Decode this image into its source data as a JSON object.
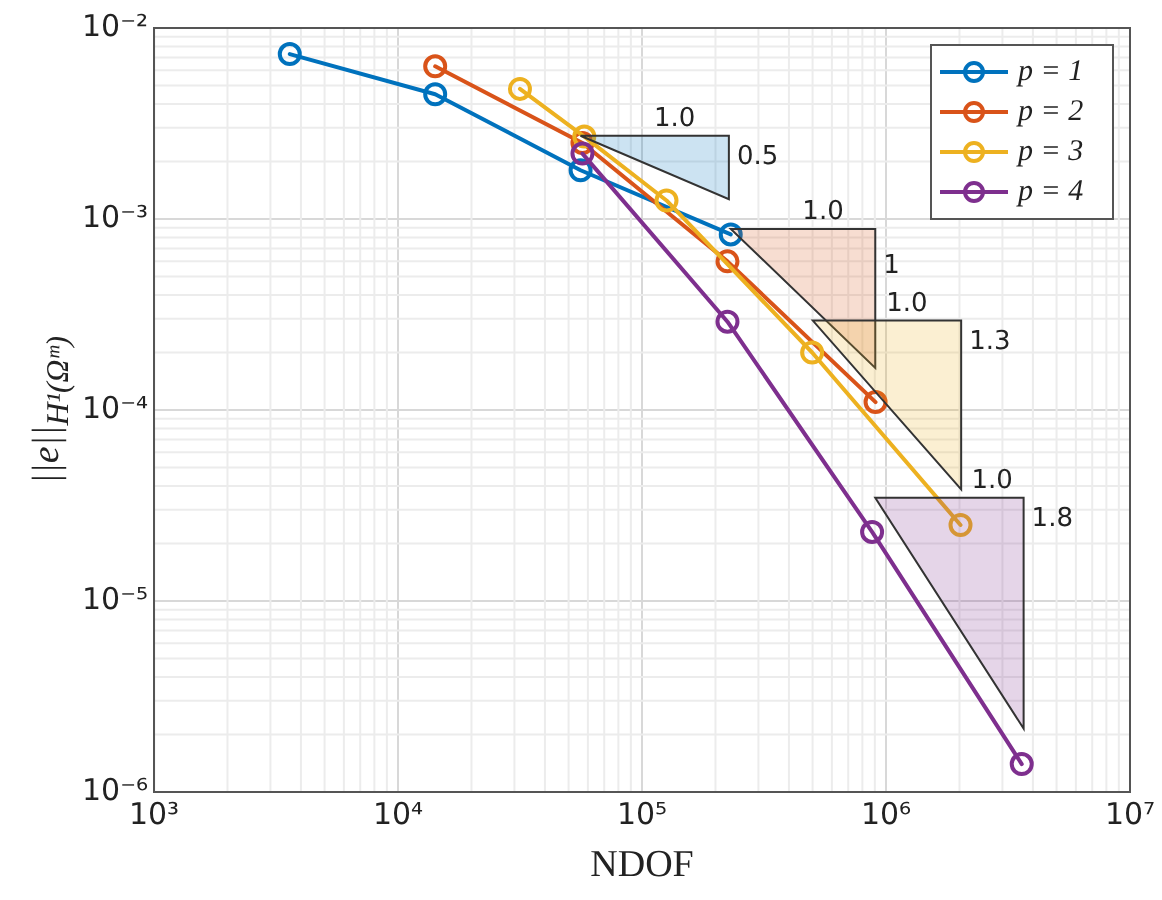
{
  "chart_data": {
    "type": "line",
    "xlabel": "NDOF",
    "ylabel": "||e||$_{H¹(Ωᵐ)}$",
    "log": "xy",
    "grid": true,
    "legend": "top right",
    "marker": "circle",
    "line_style": "solid",
    "xlim": [
      1000,
      10000000
    ],
    "ylim": [
      1e-06,
      0.01
    ],
    "xticks": [
      {
        "value": 1000,
        "label": "10³"
      },
      {
        "value": 10000,
        "label": "10⁴"
      },
      {
        "value": 100000,
        "label": "10⁵"
      },
      {
        "value": 1000000,
        "label": "10⁶"
      },
      {
        "value": 10000000,
        "label": "10⁷"
      }
    ],
    "yticks": [
      {
        "value": 1e-06,
        "label": "10⁻⁶"
      },
      {
        "value": 1e-05,
        "label": "10⁻⁵"
      },
      {
        "value": 0.0001,
        "label": "10⁻⁴"
      },
      {
        "value": 0.001,
        "label": "10⁻³"
      },
      {
        "value": 0.01,
        "label": "10⁻²"
      }
    ],
    "series": [
      {
        "name": "p = 1",
        "color": "#0072bd",
        "x": [
          3600,
          14200,
          56000,
          231000
        ],
        "values": [
          0.0073,
          0.0045,
          0.0018,
          0.00083
        ]
      },
      {
        "name": "p = 2",
        "color": "#d95319",
        "x": [
          14200,
          57000,
          224000,
          906000
        ],
        "values": [
          0.0063,
          0.0025,
          0.0006,
          0.00011
        ]
      },
      {
        "name": "p = 3",
        "color": "#edb120",
        "x": [
          31600,
          58000,
          126000,
          498000,
          2020000
        ],
        "values": [
          0.0048,
          0.0027,
          0.00125,
          0.0002,
          2.5e-05
        ]
      },
      {
        "name": "p = 4",
        "color": "#7e2f8e",
        "x": [
          57000,
          224000,
          877000,
          3600000
        ],
        "values": [
          0.0022,
          0.00029,
          2.3e-05,
          1.4e-06
        ]
      }
    ],
    "annotations": [
      "1.0",
      "0.5",
      "1.0",
      "1",
      "1.0",
      "1.3",
      "1.0",
      "1.8"
    ]
  }
}
